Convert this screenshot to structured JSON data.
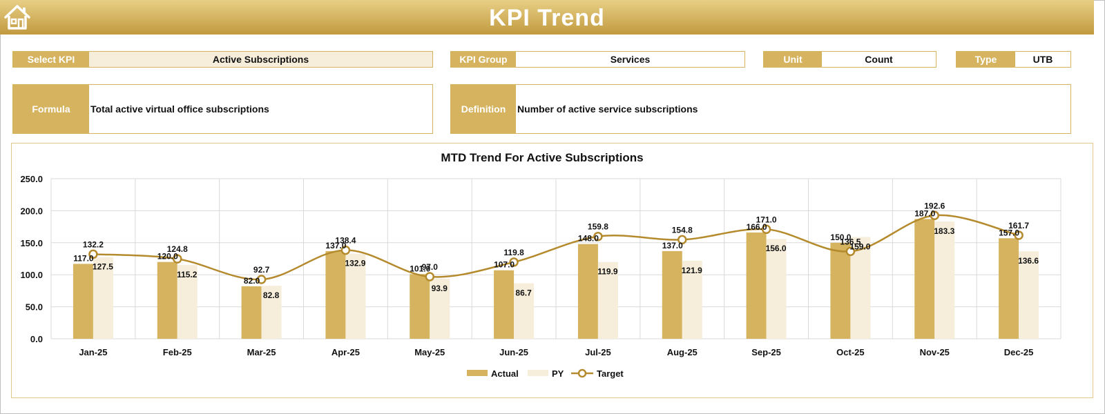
{
  "header": {
    "title": "KPI Trend"
  },
  "fields": {
    "select_kpi": {
      "label": "Select KPI",
      "value": "Active Subscriptions"
    },
    "kpi_group": {
      "label": "KPI Group",
      "value": "Services"
    },
    "unit": {
      "label": "Unit",
      "value": "Count"
    },
    "type": {
      "label": "Type",
      "value": "UTB"
    }
  },
  "formula": {
    "label": "Formula",
    "value": "Total active virtual office subscriptions"
  },
  "definition": {
    "label": "Definition",
    "value": "Number of active service subscriptions"
  },
  "colors": {
    "actual": "#d6b45f",
    "py": "#f6eedb",
    "target": "#b48a2c",
    "gold": "#d6b45f"
  },
  "chart_data": {
    "type": "bar",
    "title": "MTD Trend For Active Subscriptions",
    "categories": [
      "Jan-25",
      "Feb-25",
      "Mar-25",
      "Apr-25",
      "May-25",
      "Jun-25",
      "Jul-25",
      "Aug-25",
      "Sep-25",
      "Oct-25",
      "Nov-25",
      "Dec-25"
    ],
    "series": [
      {
        "name": "Actual",
        "kind": "bar",
        "values": [
          117.0,
          120.0,
          82.0,
          137.0,
          101.0,
          107.0,
          148.0,
          137.0,
          166.0,
          150.0,
          187.0,
          157.0
        ]
      },
      {
        "name": "PY",
        "kind": "bar",
        "values": [
          127.5,
          115.2,
          82.8,
          132.9,
          93.9,
          86.7,
          119.9,
          121.9,
          156.0,
          159.0,
          183.3,
          136.6
        ]
      },
      {
        "name": "Target",
        "kind": "line",
        "values": [
          132.2,
          124.8,
          92.7,
          138.4,
          97.0,
          119.8,
          159.8,
          154.8,
          171.0,
          136.5,
          192.6,
          161.7
        ]
      }
    ],
    "ylim": [
      0,
      250
    ],
    "yticks": [
      "0.0",
      "50.0",
      "100.0",
      "150.0",
      "200.0",
      "250.0"
    ],
    "grid": true,
    "legend": "bottom"
  }
}
